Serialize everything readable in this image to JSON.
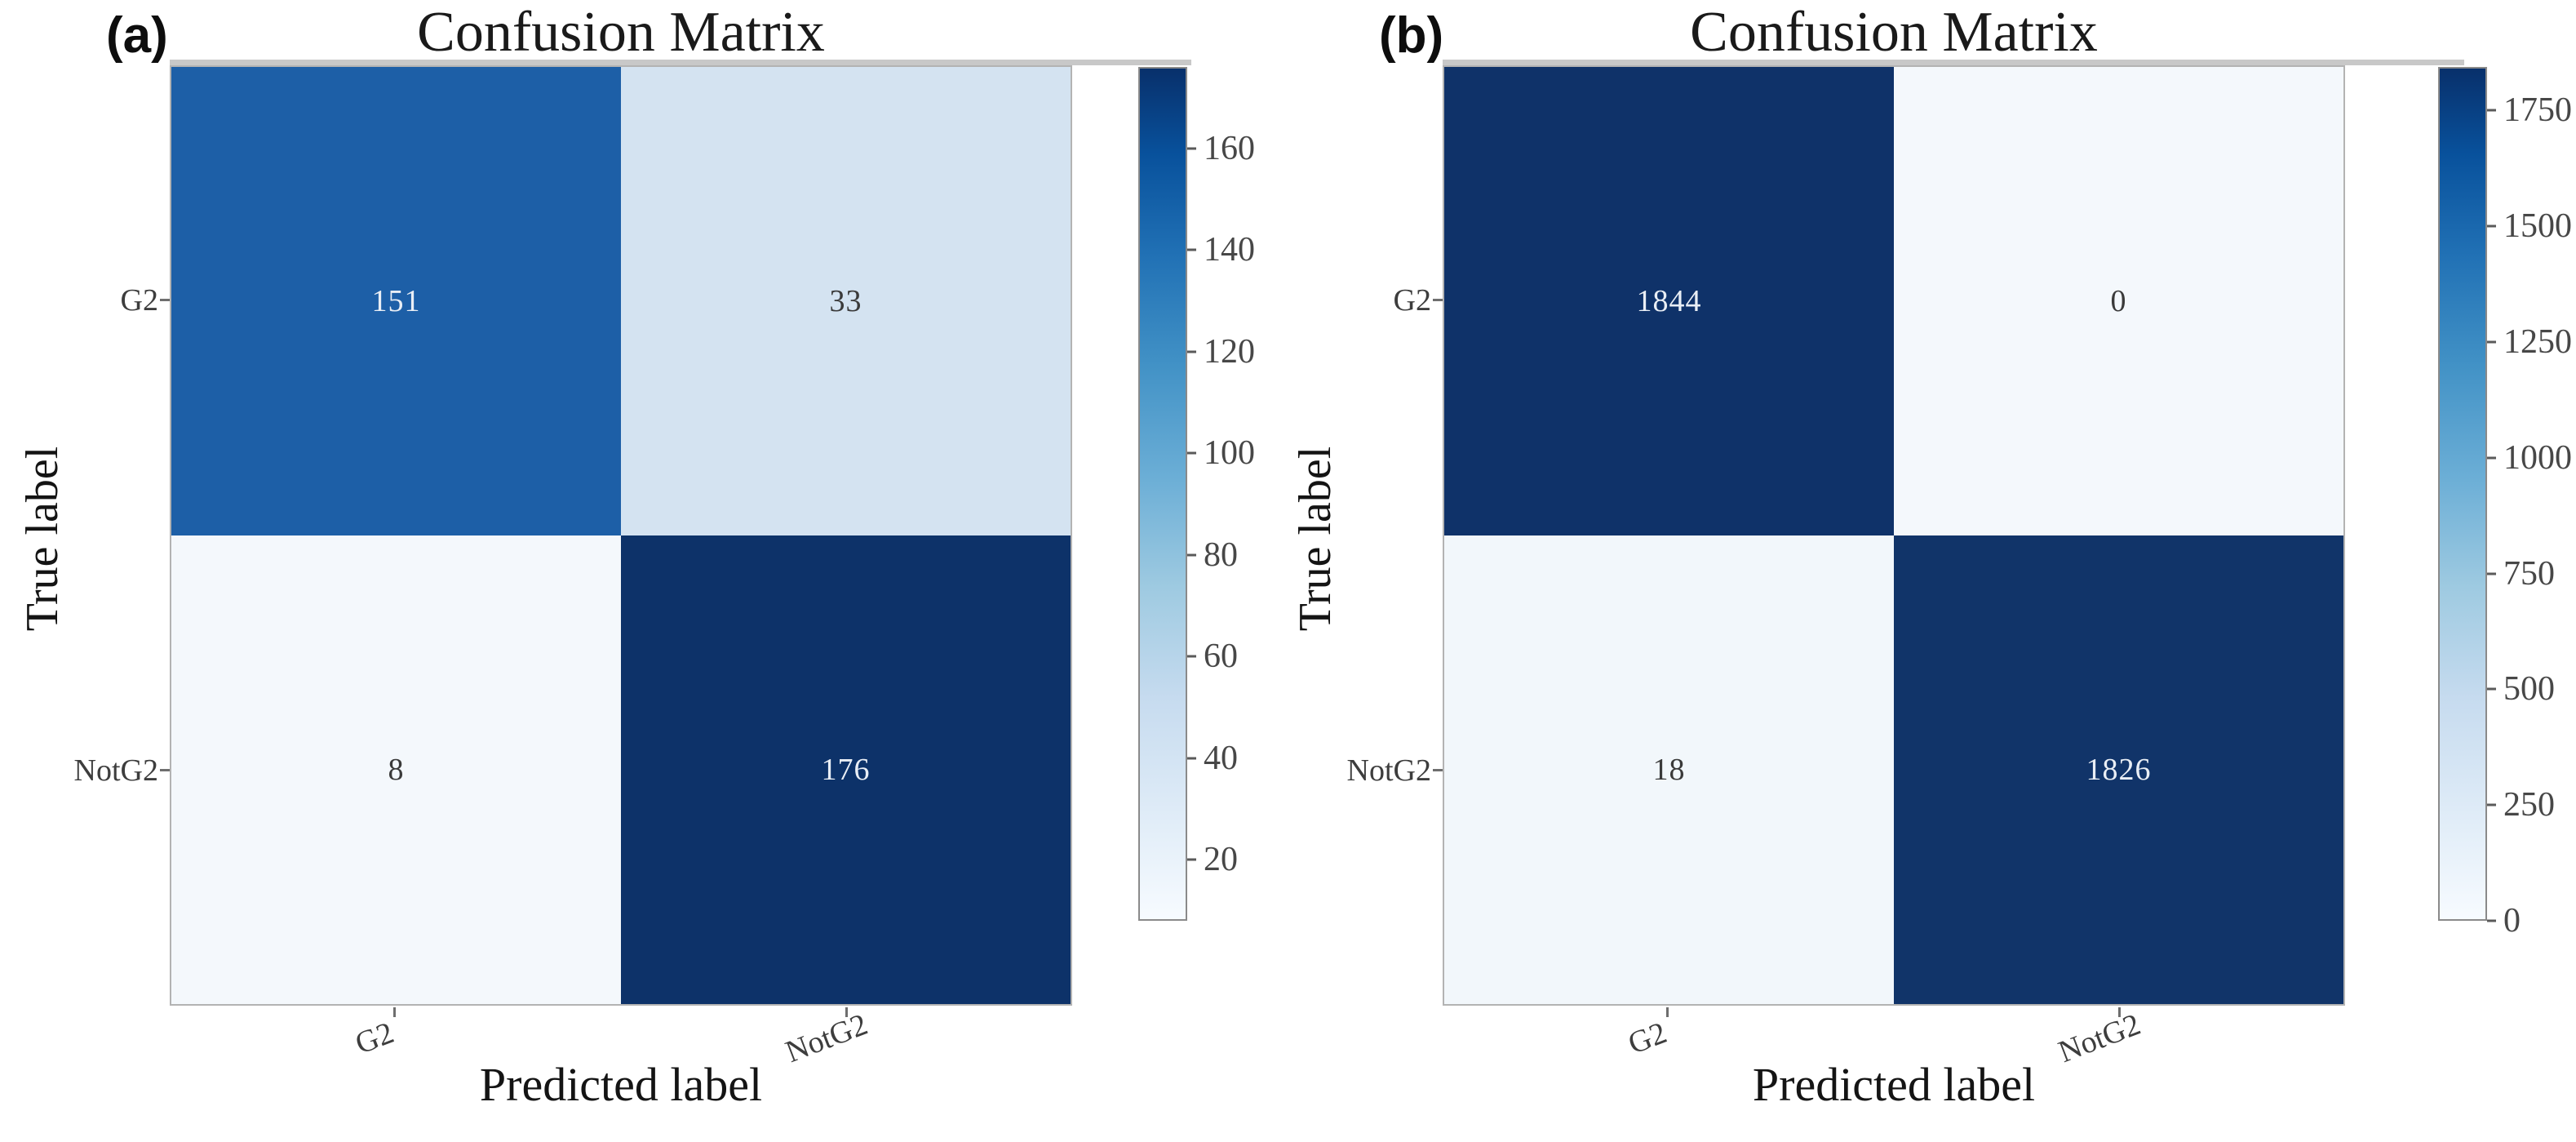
{
  "chart_data": [
    {
      "type": "heatmap",
      "panel_label": "(a)",
      "title": "Confusion Matrix",
      "xlabel": "Predicted label",
      "ylabel": "True label",
      "x_categories": [
        "G2",
        "NotG2"
      ],
      "y_categories": [
        "G2",
        "NotG2"
      ],
      "values": [
        [
          151,
          33
        ],
        [
          8,
          176
        ]
      ],
      "colormap": "Blues",
      "colorbar_range": [
        8,
        176
      ],
      "colorbar_ticks": [
        20,
        40,
        60,
        80,
        100,
        120,
        140,
        160
      ],
      "cell_colors": [
        [
          "#1d5fa7",
          "#d4e3f1"
        ],
        [
          "#f4f8fc",
          "#0d3269"
        ]
      ]
    },
    {
      "type": "heatmap",
      "panel_label": "(b)",
      "title": "Confusion Matrix",
      "xlabel": "Predicted label",
      "ylabel": "True label",
      "x_categories": [
        "G2",
        "NotG2"
      ],
      "y_categories": [
        "G2",
        "NotG2"
      ],
      "values": [
        [
          1844,
          0
        ],
        [
          18,
          1826
        ]
      ],
      "colormap": "Blues",
      "colorbar_range": [
        0,
        1844
      ],
      "colorbar_ticks": [
        0,
        250,
        500,
        750,
        1000,
        1250,
        1500,
        1750
      ],
      "cell_colors": [
        [
          "#0f3269",
          "#f4f8fc"
        ],
        [
          "#f2f7fb",
          "#113469"
        ]
      ]
    }
  ]
}
